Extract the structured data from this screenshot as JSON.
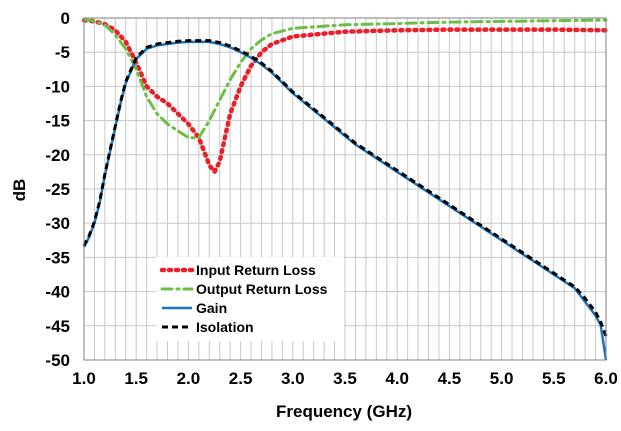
{
  "chart_data": {
    "type": "line",
    "title": "",
    "xlabel": "Frequency (GHz)",
    "ylabel": "dB",
    "xlim": [
      1.0,
      6.0
    ],
    "ylim": [
      -50,
      0
    ],
    "x_ticks": [
      "1.0",
      "1.5",
      "2.0",
      "2.5",
      "3.0",
      "3.5",
      "4.0",
      "4.5",
      "5.0",
      "5.5",
      "6.0"
    ],
    "y_ticks": [
      "0",
      "-5",
      "-10",
      "-15",
      "-20",
      "-25",
      "-30",
      "-35",
      "-40",
      "-45",
      "-50"
    ],
    "grid": true,
    "legend_position": "bottom-left",
    "series": [
      {
        "name": "Input Return Loss",
        "color": "#e8202a",
        "dash": "dotted",
        "x": [
          1.0,
          1.1,
          1.2,
          1.3,
          1.4,
          1.5,
          1.6,
          1.7,
          1.8,
          1.9,
          2.0,
          2.1,
          2.15,
          2.2,
          2.25,
          2.3,
          2.35,
          2.4,
          2.5,
          2.6,
          2.7,
          2.8,
          3.0,
          3.5,
          4.0,
          4.5,
          5.0,
          5.5,
          6.0
        ],
        "y": [
          -0.3,
          -0.5,
          -0.9,
          -1.8,
          -3.5,
          -6.5,
          -10.0,
          -11.5,
          -12.5,
          -14.0,
          -15.5,
          -17.5,
          -19.5,
          -21.5,
          -22.5,
          -21.0,
          -17.5,
          -14.0,
          -10.0,
          -7.0,
          -5.0,
          -3.8,
          -2.7,
          -2.0,
          -1.8,
          -1.7,
          -1.7,
          -1.7,
          -1.8
        ]
      },
      {
        "name": "Output Return Loss",
        "color": "#6cbe45",
        "dash": "dashdot",
        "x": [
          1.0,
          1.1,
          1.2,
          1.3,
          1.4,
          1.5,
          1.6,
          1.7,
          1.8,
          1.9,
          2.0,
          2.1,
          2.2,
          2.3,
          2.4,
          2.5,
          2.6,
          2.7,
          2.8,
          3.0,
          3.5,
          4.0,
          4.5,
          5.0,
          5.5,
          6.0
        ],
        "y": [
          -0.2,
          -0.5,
          -1.0,
          -2.5,
          -4.5,
          -7.5,
          -11.5,
          -14.0,
          -15.5,
          -16.5,
          -17.5,
          -17.5,
          -15.0,
          -12.0,
          -9.0,
          -6.5,
          -4.5,
          -3.2,
          -2.3,
          -1.5,
          -1.0,
          -0.8,
          -0.6,
          -0.5,
          -0.4,
          -0.3
        ]
      },
      {
        "name": "Gain",
        "color": "#1b75bc",
        "dash": "solid",
        "x": [
          1.0,
          1.05,
          1.1,
          1.15,
          1.2,
          1.25,
          1.3,
          1.35,
          1.4,
          1.5,
          1.6,
          1.7,
          1.8,
          1.9,
          2.0,
          2.1,
          2.2,
          2.3,
          2.4,
          2.5,
          2.6,
          2.7,
          2.8,
          2.9,
          3.0,
          3.2,
          3.4,
          3.6,
          3.8,
          4.0,
          4.2,
          4.4,
          4.6,
          4.8,
          5.0,
          5.2,
          5.4,
          5.5,
          5.6,
          5.7,
          5.8,
          5.85,
          5.9,
          5.95,
          6.0
        ],
        "y": [
          -33.5,
          -32.0,
          -30.0,
          -27.0,
          -23.0,
          -19.5,
          -16.0,
          -12.5,
          -9.5,
          -6.0,
          -4.5,
          -4.0,
          -3.8,
          -3.6,
          -3.5,
          -3.5,
          -3.5,
          -3.8,
          -4.3,
          -5.0,
          -5.8,
          -6.8,
          -8.0,
          -9.5,
          -11.0,
          -13.5,
          -16.0,
          -18.5,
          -20.5,
          -22.5,
          -24.5,
          -26.5,
          -28.5,
          -30.5,
          -32.5,
          -34.5,
          -36.5,
          -37.5,
          -38.5,
          -39.5,
          -41.5,
          -42.5,
          -43.5,
          -45.0,
          -50.0
        ]
      },
      {
        "name": "Isolation",
        "color": "#000000",
        "dash": "dashed",
        "x": [
          1.0,
          1.05,
          1.1,
          1.15,
          1.2,
          1.25,
          1.3,
          1.35,
          1.4,
          1.5,
          1.6,
          1.7,
          1.8,
          1.9,
          2.0,
          2.1,
          2.2,
          2.3,
          2.4,
          2.5,
          2.6,
          2.7,
          2.8,
          2.9,
          3.0,
          3.2,
          3.4,
          3.6,
          3.8,
          4.0,
          4.2,
          4.4,
          4.6,
          4.8,
          5.0,
          5.2,
          5.4,
          5.5,
          5.6,
          5.7,
          5.8,
          5.85,
          5.9,
          5.95,
          6.0
        ],
        "y": [
          -33.3,
          -31.8,
          -29.8,
          -26.8,
          -22.8,
          -19.3,
          -15.8,
          -12.3,
          -9.3,
          -5.8,
          -4.3,
          -3.8,
          -3.6,
          -3.4,
          -3.3,
          -3.3,
          -3.3,
          -3.6,
          -4.1,
          -4.8,
          -5.6,
          -6.6,
          -7.8,
          -9.3,
          -10.8,
          -13.3,
          -15.8,
          -18.3,
          -20.3,
          -22.3,
          -24.3,
          -26.3,
          -28.3,
          -30.3,
          -32.3,
          -34.3,
          -36.3,
          -37.3,
          -38.3,
          -39.3,
          -41.0,
          -42.0,
          -43.0,
          -44.5,
          -46.5
        ]
      }
    ]
  }
}
